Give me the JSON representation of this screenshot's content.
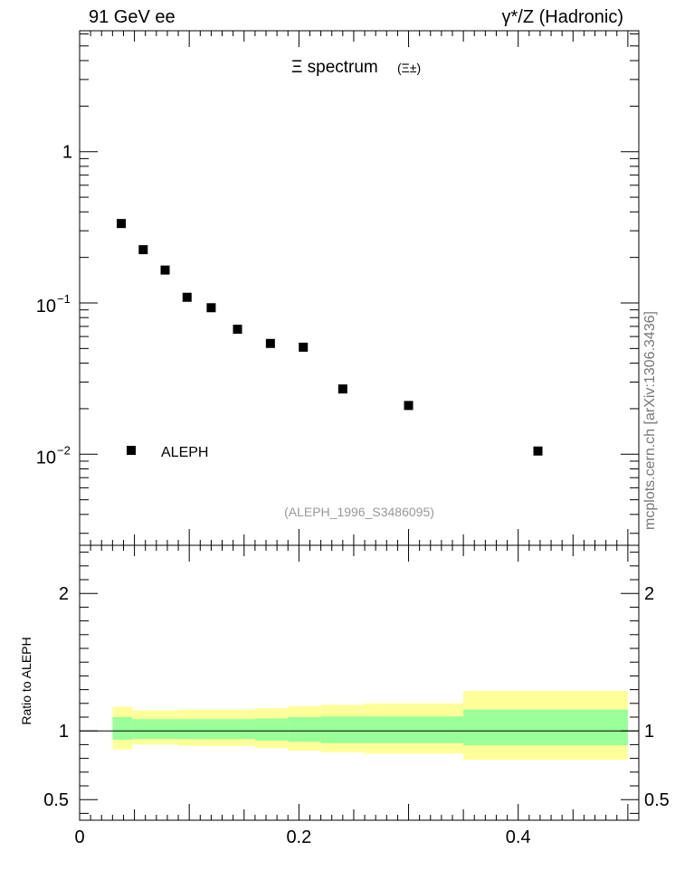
{
  "header": {
    "left": "91 GeV ee",
    "right": "γ*/Z (Hadronic)"
  },
  "side_label": "mcplots.cern.ch [arXiv:1306.3436]",
  "chart_data": [
    {
      "type": "scatter",
      "title_main": "Ξ spectrum",
      "title_sub": "(Ξ±)",
      "watermark": "(ALEPH_1996_S3486095)",
      "xlim": [
        0,
        0.51
      ],
      "ylim": [
        0.0025,
        6.3
      ],
      "yscale": "log",
      "y_ticks": [
        {
          "value": 1,
          "label": "1"
        },
        {
          "value": 0.1,
          "base": "10",
          "exp": "−1"
        },
        {
          "value": 0.01,
          "base": "10",
          "exp": "−2"
        }
      ],
      "legend": {
        "label": "ALEPH",
        "placement": "bottom-left"
      },
      "series": [
        {
          "name": "ALEPH",
          "marker": "square",
          "color": "#000000",
          "x": [
            0.038,
            0.058,
            0.078,
            0.098,
            0.12,
            0.144,
            0.174,
            0.204,
            0.24,
            0.3,
            0.418
          ],
          "y": [
            0.335,
            0.225,
            0.165,
            0.109,
            0.093,
            0.067,
            0.054,
            0.051,
            0.027,
            0.021,
            0.0105
          ]
        }
      ]
    },
    {
      "type": "area",
      "ylabel": "Ratio to ALEPH",
      "xlim": [
        0,
        0.51
      ],
      "ylim": [
        0.35,
        2.35
      ],
      "y_ticks": [
        {
          "value": 2,
          "label": "2"
        },
        {
          "value": 1,
          "label": "1"
        },
        {
          "value": 0.5,
          "label": "0.5"
        }
      ],
      "x_ticks": [
        {
          "value": 0,
          "label": "0"
        },
        {
          "value": 0.2,
          "label": "0.2"
        },
        {
          "value": 0.4,
          "label": "0.4"
        }
      ],
      "reference_line": 1,
      "bins": [
        {
          "x0": 0.03,
          "x1": 0.048,
          "inner": [
            0.935,
            1.1
          ],
          "outer": [
            0.865,
            1.175
          ]
        },
        {
          "x0": 0.048,
          "x1": 0.09,
          "inner": [
            0.94,
            1.085
          ],
          "outer": [
            0.9,
            1.15
          ]
        },
        {
          "x0": 0.09,
          "x1": 0.16,
          "inner": [
            0.94,
            1.085
          ],
          "outer": [
            0.89,
            1.155
          ]
        },
        {
          "x0": 0.16,
          "x1": 0.19,
          "inner": [
            0.93,
            1.09
          ],
          "outer": [
            0.875,
            1.165
          ]
        },
        {
          "x0": 0.19,
          "x1": 0.22,
          "inner": [
            0.92,
            1.1
          ],
          "outer": [
            0.855,
            1.18
          ]
        },
        {
          "x0": 0.22,
          "x1": 0.26,
          "inner": [
            0.91,
            1.105
          ],
          "outer": [
            0.845,
            1.19
          ]
        },
        {
          "x0": 0.26,
          "x1": 0.35,
          "inner": [
            0.91,
            1.105
          ],
          "outer": [
            0.835,
            1.2
          ]
        },
        {
          "x0": 0.35,
          "x1": 0.5,
          "inner": [
            0.895,
            1.155
          ],
          "outer": [
            0.79,
            1.29
          ]
        }
      ],
      "band_colors": {
        "inner": "#99ff99",
        "outer": "#ffff99"
      }
    }
  ]
}
